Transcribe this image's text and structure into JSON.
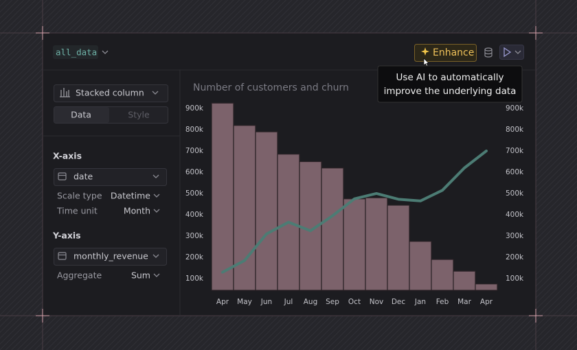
{
  "header": {
    "dataset": "all_data",
    "enhance_button": "Enhance",
    "tooltip": [
      "Use AI to automatically",
      "improve the underlying data"
    ]
  },
  "sidebar": {
    "chart_type": "Stacked column",
    "tabs": [
      "Data",
      "Style"
    ],
    "x_axis": {
      "title": "X-axis",
      "field": "date",
      "settings": [
        [
          "Scale type",
          "Datetime"
        ],
        [
          "Time unit",
          "Month"
        ]
      ]
    },
    "y_axis": {
      "title": "Y-axis",
      "field": "monthly_revenue",
      "settings": [
        [
          "Aggregate",
          "Sum"
        ]
      ]
    }
  },
  "chart_data": {
    "type": "bar",
    "title": "Number of customers and churn",
    "categories": [
      "Apr",
      "May",
      "Jun",
      "Jul",
      "Aug",
      "Sep",
      "Oct",
      "Nov",
      "Dec",
      "Jan",
      "Feb",
      "Mar",
      "Apr"
    ],
    "series": [
      {
        "type": "bar",
        "color": "#7c626b",
        "values": [
          925000,
          820000,
          790000,
          685000,
          650000,
          620000,
          475000,
          480000,
          445000,
          275000,
          190000,
          135000,
          75000
        ]
      },
      {
        "type": "line",
        "axis": "y2",
        "color": "#4c7c74",
        "values": [
          130000,
          185000,
          310000,
          365000,
          325000,
          395000,
          475000,
          500000,
          473000,
          465000,
          515000,
          620000,
          700000
        ]
      }
    ],
    "ylim": [
      45000,
      945000
    ],
    "yticks": [
      {
        "value": 100000,
        "label": "100k"
      },
      {
        "value": 200000,
        "label": "200k"
      },
      {
        "value": 300000,
        "label": "300k"
      },
      {
        "value": 400000,
        "label": "400k"
      },
      {
        "value": 500000,
        "label": "500k"
      },
      {
        "value": 600000,
        "label": "600k"
      },
      {
        "value": 700000,
        "label": "700k"
      },
      {
        "value": 800000,
        "label": "800k"
      },
      {
        "value": 900000,
        "label": "900k"
      }
    ],
    "y2lim": [
      45000,
      945000
    ],
    "y2ticks": [
      {
        "value": 100000,
        "label": "100k"
      },
      {
        "value": 200000,
        "label": "200k"
      },
      {
        "value": 300000,
        "label": "300k"
      },
      {
        "value": 400000,
        "label": "400k"
      },
      {
        "value": 500000,
        "label": "500k"
      },
      {
        "value": 600000,
        "label": "600k"
      },
      {
        "value": 700000,
        "label": "700k"
      },
      {
        "value": 800000,
        "label": "800k"
      },
      {
        "value": 900000,
        "label": "900k"
      }
    ],
    "grid": false
  }
}
